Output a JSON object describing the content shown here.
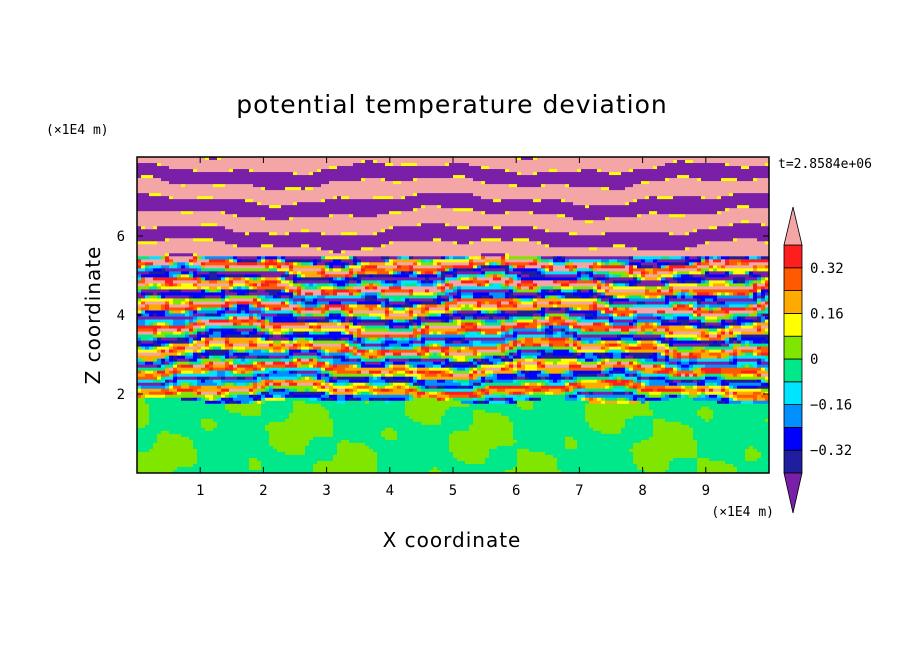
{
  "chart_data": {
    "type": "heatmap",
    "title": "potential temperature deviation",
    "xlabel": "X coordinate",
    "ylabel": "Z coordinate",
    "x_unit": "(×1E4 m)",
    "y_unit": "(×1E4 m)",
    "time_label": "t=2.8584e+06",
    "xlim": [
      0,
      10
    ],
    "ylim": [
      0,
      8
    ],
    "x_ticks": [
      "1",
      "2",
      "3",
      "4",
      "5",
      "6",
      "7",
      "8",
      "9"
    ],
    "y_ticks": [
      "2",
      "4",
      "6"
    ],
    "colorbar": {
      "levels": [
        -0.4,
        -0.32,
        -0.24,
        -0.16,
        -0.08,
        0,
        0.08,
        0.16,
        0.24,
        0.32,
        0.4
      ],
      "labels": [
        "0.32",
        "0.16",
        "0",
        "−0.16",
        "−0.32"
      ],
      "label_values": [
        0.32,
        0.16,
        0,
        -0.16,
        -0.32
      ],
      "colors": {
        "under": "#7a1fa8",
        "bands": [
          "#1e1e9e",
          "#0000ff",
          "#0090ff",
          "#00e5ff",
          "#00e88a",
          "#80e600",
          "#ffff00",
          "#ffaa00",
          "#ff5a00",
          "#ff1e1e"
        ],
        "over": "#f4a6a6"
      },
      "extend": "both"
    },
    "layers": [
      {
        "z": [
          0.0,
          1.8
        ],
        "description_value": "weak mixed field, values 0 to 0.08 and -0.08 to 0"
      },
      {
        "z": [
          1.8,
          5.5
        ],
        "description_value": "strong alternating layers spanning full range"
      },
      {
        "z": [
          5.5,
          8.0
        ],
        "description_value": "layers alternating between below -0.4 and above 0.4"
      }
    ]
  }
}
